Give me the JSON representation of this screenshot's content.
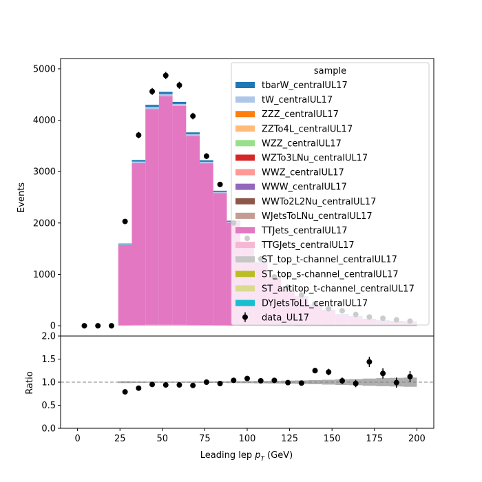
{
  "chart_data": [
    {
      "type": "bar",
      "stacked": true,
      "xlabel_main": "Leading lep ",
      "xlabel_sub": "T",
      "xlabel_unit": " (GeV)",
      "ylabel": "Events",
      "xlim": [
        -10,
        210
      ],
      "ylim": [
        -200,
        5200
      ],
      "x_ticks": [
        "0",
        "25",
        "50",
        "75",
        "100",
        "125",
        "150",
        "175",
        "200"
      ],
      "y_ticks": [
        "0",
        "1000",
        "2000",
        "3000",
        "4000",
        "5000"
      ],
      "legend": {
        "title": "sample",
        "placement": "upper right",
        "entries": [
          {
            "label": "tbarW_centralUL17",
            "color": "#1f77b4"
          },
          {
            "label": "tW_centralUL17",
            "color": "#aec7e8"
          },
          {
            "label": "ZZZ_centralUL17",
            "color": "#ff7f0e"
          },
          {
            "label": "ZZTo4L_centralUL17",
            "color": "#ffbb78"
          },
          {
            "label": "WZZ_centralUL17",
            "color": "#98df8a"
          },
          {
            "label": "WZTo3LNu_centralUL17",
            "color": "#d62728"
          },
          {
            "label": "WWZ_centralUL17",
            "color": "#ff9896"
          },
          {
            "label": "WWW_centralUL17",
            "color": "#9467bd"
          },
          {
            "label": "WWTo2L2Nu_centralUL17",
            "color": "#8c564b"
          },
          {
            "label": "WJetsToLNu_centralUL17",
            "color": "#c49c94"
          },
          {
            "label": "TTJets_centralUL17",
            "color": "#e377c2"
          },
          {
            "label": "TTGJets_centralUL17",
            "color": "#f7b6d2"
          },
          {
            "label": "ST_top_t-channel_centralUL17",
            "color": "#c7c7c7"
          },
          {
            "label": "ST_top_s-channel_centralUL17",
            "color": "#bcbd22"
          },
          {
            "label": "ST_antitop_t-channel_centralUL17",
            "color": "#dbdb8d"
          },
          {
            "label": "DYJetsToLL_centralUL17",
            "color": "#17becf"
          }
        ],
        "data_label": "data_UL17"
      },
      "bins": {
        "edges": [
          0,
          8,
          16,
          24,
          32,
          40,
          48,
          56,
          64,
          72,
          80,
          88,
          96,
          104,
          112,
          120,
          128,
          136,
          144,
          152,
          160,
          168,
          176,
          184,
          192,
          200
        ],
        "ttjets": [
          0,
          0,
          0,
          1560,
          3150,
          4200,
          4450,
          4260,
          3680,
          3150,
          2570,
          2000,
          1560,
          1220,
          920,
          690,
          560,
          400,
          300,
          220,
          180,
          130,
          100,
          90,
          80
        ],
        "tw": [
          0,
          0,
          0,
          15,
          30,
          40,
          42,
          40,
          34,
          29,
          24,
          18,
          14,
          11,
          8,
          6,
          5,
          4,
          3,
          2,
          2,
          1,
          1,
          1,
          1
        ],
        "tbarw": [
          0,
          0,
          0,
          15,
          30,
          40,
          42,
          40,
          34,
          29,
          24,
          18,
          14,
          11,
          8,
          6,
          5,
          4,
          3,
          2,
          2,
          1,
          1,
          1,
          1
        ],
        "other": [
          0,
          0,
          0,
          10,
          15,
          18,
          18,
          17,
          15,
          12,
          10,
          8,
          6,
          5,
          4,
          3,
          2,
          2,
          1,
          1,
          1,
          1,
          1,
          1,
          1
        ]
      },
      "data_points": [
        {
          "x": 4,
          "y": 0
        },
        {
          "x": 12,
          "y": 0
        },
        {
          "x": 20,
          "y": 0
        },
        {
          "x": 28,
          "y": 2030
        },
        {
          "x": 36,
          "y": 3710
        },
        {
          "x": 44,
          "y": 4560
        },
        {
          "x": 52,
          "y": 4870
        },
        {
          "x": 60,
          "y": 4680
        },
        {
          "x": 68,
          "y": 4080
        },
        {
          "x": 76,
          "y": 3300
        },
        {
          "x": 84,
          "y": 2750
        },
        {
          "x": 92,
          "y": 2000
        },
        {
          "x": 100,
          "y": 1700
        },
        {
          "x": 108,
          "y": 1300
        },
        {
          "x": 116,
          "y": 950
        },
        {
          "x": 124,
          "y": 750
        },
        {
          "x": 132,
          "y": 600
        },
        {
          "x": 140,
          "y": 430
        },
        {
          "x": 148,
          "y": 330
        },
        {
          "x": 156,
          "y": 290
        },
        {
          "x": 164,
          "y": 220
        },
        {
          "x": 172,
          "y": 170
        },
        {
          "x": 180,
          "y": 145
        },
        {
          "x": 188,
          "y": 115
        },
        {
          "x": 196,
          "y": 90
        }
      ]
    },
    {
      "type": "scatter",
      "ylabel": "Ratio",
      "xlim": [
        -10,
        210
      ],
      "ylim": [
        0,
        2
      ],
      "y_ticks": [
        "0.0",
        "0.5",
        "1.0",
        "1.5",
        "2.0"
      ],
      "reference_line": 1.0,
      "ratio_points": [
        {
          "x": 28,
          "y": 0.79,
          "err": 0.02
        },
        {
          "x": 36,
          "y": 0.87,
          "err": 0.02
        },
        {
          "x": 44,
          "y": 0.95,
          "err": 0.02
        },
        {
          "x": 52,
          "y": 0.94,
          "err": 0.02
        },
        {
          "x": 60,
          "y": 0.94,
          "err": 0.02
        },
        {
          "x": 68,
          "y": 0.93,
          "err": 0.02
        },
        {
          "x": 76,
          "y": 1.0,
          "err": 0.02
        },
        {
          "x": 84,
          "y": 0.97,
          "err": 0.02
        },
        {
          "x": 92,
          "y": 1.04,
          "err": 0.03
        },
        {
          "x": 100,
          "y": 1.08,
          "err": 0.03
        },
        {
          "x": 108,
          "y": 1.03,
          "err": 0.03
        },
        {
          "x": 116,
          "y": 1.04,
          "err": 0.04
        },
        {
          "x": 124,
          "y": 0.99,
          "err": 0.04
        },
        {
          "x": 132,
          "y": 0.98,
          "err": 0.05
        },
        {
          "x": 140,
          "y": 1.25,
          "err": 0.06
        },
        {
          "x": 148,
          "y": 1.22,
          "err": 0.07
        },
        {
          "x": 156,
          "y": 1.03,
          "err": 0.07
        },
        {
          "x": 164,
          "y": 0.97,
          "err": 0.08
        },
        {
          "x": 172,
          "y": 1.44,
          "err": 0.11
        },
        {
          "x": 180,
          "y": 1.19,
          "err": 0.11
        },
        {
          "x": 188,
          "y": 0.99,
          "err": 0.11
        },
        {
          "x": 196,
          "y": 1.12,
          "err": 0.12
        }
      ],
      "uncertainty_halfwidth": [
        0,
        0,
        0,
        0.02,
        0.015,
        0.012,
        0.012,
        0.012,
        0.013,
        0.015,
        0.017,
        0.02,
        0.022,
        0.026,
        0.03,
        0.034,
        0.038,
        0.045,
        0.052,
        0.06,
        0.066,
        0.078,
        0.088,
        0.094,
        0.1
      ]
    }
  ]
}
